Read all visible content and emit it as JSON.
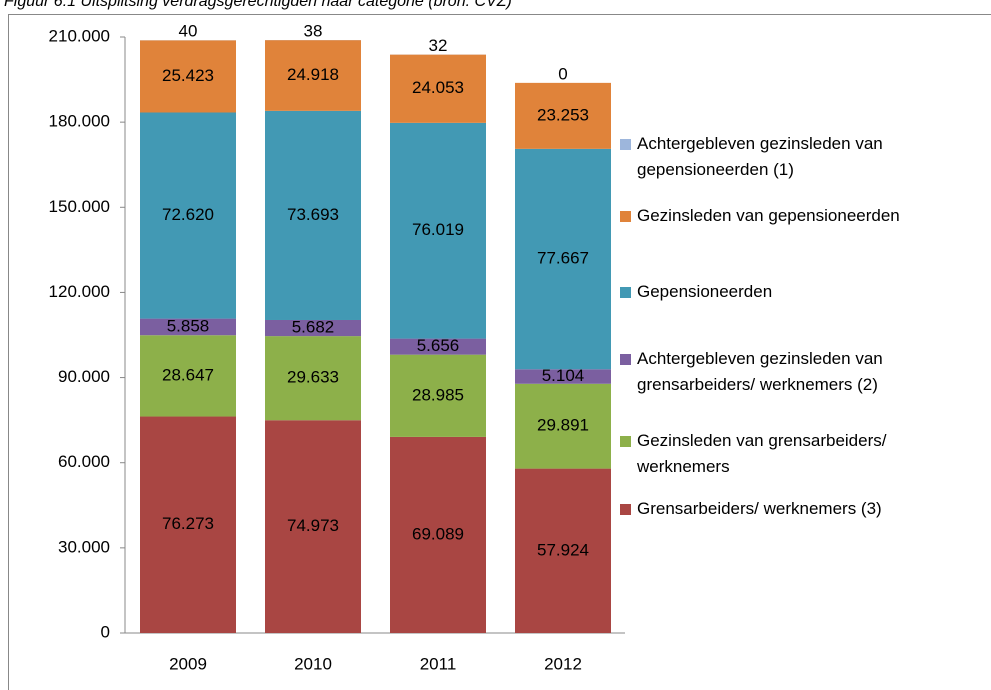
{
  "chart_data": {
    "type": "bar",
    "stacked": true,
    "title": "Figuur 6.1 Uitsplitsing verdragsgerechtigden naar categorie (bron: CVZ)",
    "categories": [
      "2009",
      "2010",
      "2011",
      "2012"
    ],
    "ylim": [
      0,
      210000
    ],
    "yticks": [
      0,
      {
        "value": 30000,
        "label": "30.000"
      },
      {
        "value": 60000,
        "label": "60.000"
      },
      {
        "value": 90000,
        "label": "90.000"
      },
      {
        "value": 120000,
        "label": "120.000"
      },
      {
        "value": 150000,
        "label": "150.000"
      },
      {
        "value": 180000,
        "label": "180.000"
      },
      {
        "value": 210000,
        "label": "210.000"
      }
    ],
    "legend": "right",
    "series": [
      {
        "name": "Grensarbeiders/ werknemers (3)",
        "color": "#a94643",
        "values": [
          76273,
          74973,
          69089,
          57924
        ],
        "value_labels": [
          "76.273",
          "74.973",
          "69.089",
          "57.924"
        ]
      },
      {
        "name": "Gezinsleden van grensarbeiders/ werknemers",
        "color": "#8db04a",
        "values": [
          28647,
          29633,
          28985,
          29891
        ],
        "value_labels": [
          "28.647",
          "29.633",
          "28.985",
          "29.891"
        ]
      },
      {
        "name": "Achtergebleven gezinsleden van grensarbeiders/ werknemers (2)",
        "color": "#7b5fa0",
        "values": [
          5858,
          5682,
          5656,
          5104
        ],
        "value_labels": [
          "5.858",
          "5.682",
          "5.656",
          "5.104"
        ]
      },
      {
        "name": "Gepensioneerden",
        "color": "#4299b4",
        "values": [
          72620,
          73693,
          76019,
          77667
        ],
        "value_labels": [
          "72.620",
          "73.693",
          "76.019",
          "77.667"
        ]
      },
      {
        "name": "Gezinsleden van gepensioneerden",
        "color": "#e0833a",
        "values": [
          25423,
          24918,
          24053,
          23253
        ],
        "value_labels": [
          "25.423",
          "24.918",
          "24.053",
          "23.253"
        ]
      },
      {
        "name": "Achtergebleven gezinsleden van gepensioneerden (1)",
        "color": "#9db6dc",
        "values": [
          40,
          38,
          32,
          0
        ]
      }
    ]
  }
}
